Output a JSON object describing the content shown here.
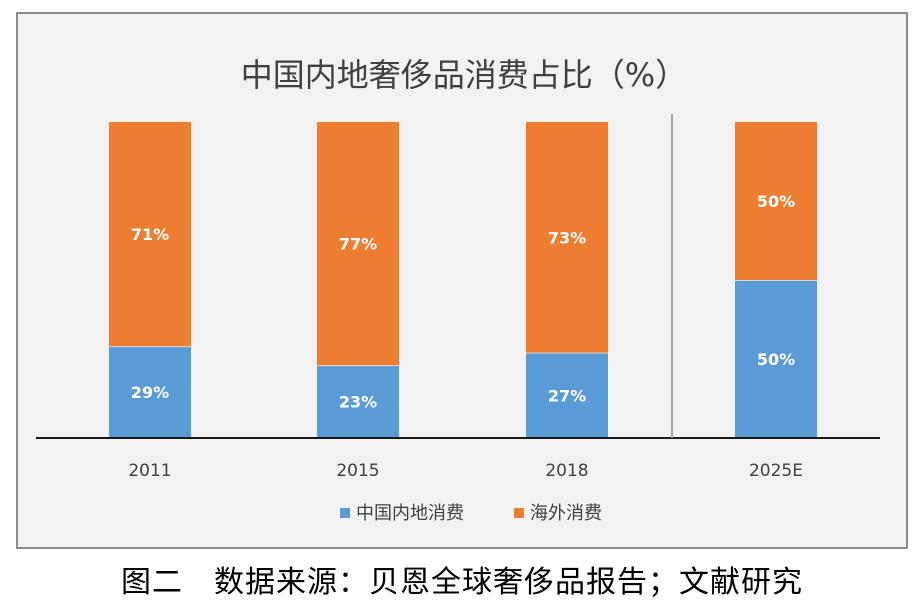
{
  "chart_data": {
    "type": "bar",
    "stacked": true,
    "percent": true,
    "title": "中国内地奢侈品消费占比（%）",
    "categories": [
      "2011",
      "2015",
      "2018",
      "2025E"
    ],
    "series": [
      {
        "name": "中国内地消费",
        "color": "#5b9bd5",
        "values": [
          29,
          23,
          27,
          50
        ],
        "labels": [
          "29%",
          "23%",
          "27%",
          "50%"
        ]
      },
      {
        "name": "海外消费",
        "color": "#ed7d31",
        "values": [
          71,
          77,
          73,
          50
        ],
        "labels": [
          "71%",
          "77%",
          "73%",
          "50%"
        ]
      }
    ],
    "ylim": [
      0,
      100
    ],
    "grid": false,
    "legend_position": "bottom",
    "separator_before_category": "2025E"
  },
  "caption": "图二　数据来源：贝恩全球奢侈品报告；文献研究"
}
